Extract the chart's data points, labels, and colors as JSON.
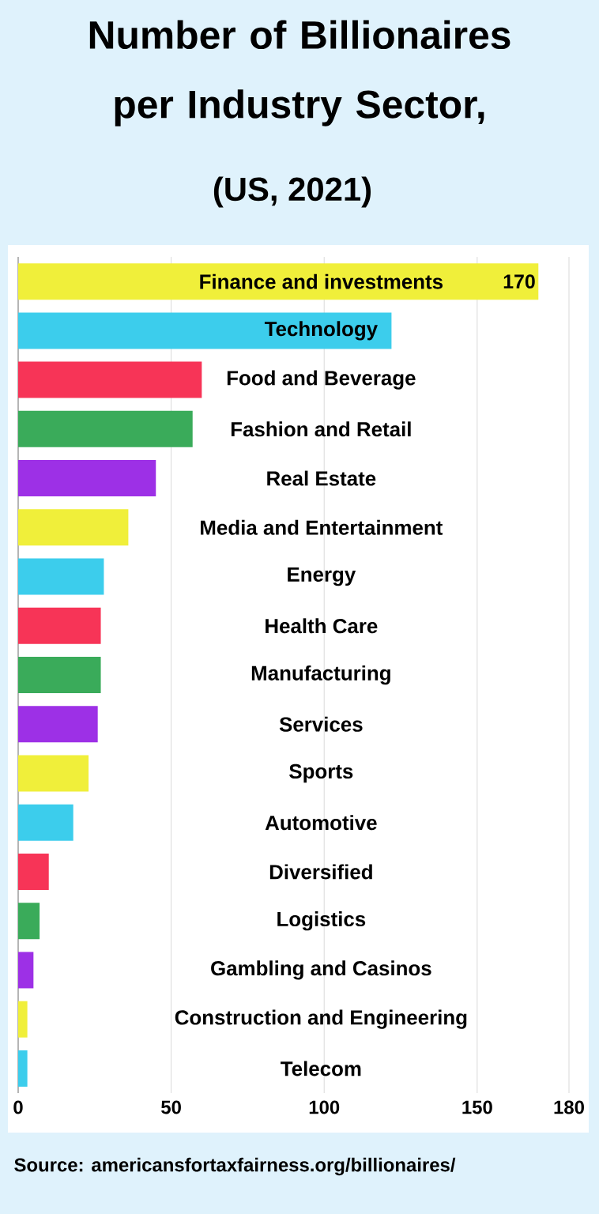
{
  "chart_data": {
    "type": "bar",
    "orientation": "horizontal",
    "title": "Number of Billionaires per Industry Sector,",
    "subtitle": "(US, 2021)",
    "categories": [
      "Finance and investments",
      "Technology",
      "Food and Beverage",
      "Fashion and Retail",
      "Real Estate",
      "Media and Entertainment",
      "Energy",
      "Health Care",
      "Manufacturing",
      "Services",
      "Sports",
      "Automotive",
      "Diversified",
      "Logistics",
      "Gambling and Casinos",
      "Construction and Engineering",
      "Telecom"
    ],
    "values": [
      170,
      122,
      60,
      57,
      45,
      36,
      28,
      27,
      27,
      26,
      23,
      18,
      10,
      7,
      5,
      3,
      3
    ],
    "value_labels": [
      "170",
      null,
      null,
      null,
      null,
      null,
      null,
      null,
      null,
      null,
      null,
      null,
      null,
      null,
      null,
      null,
      null
    ],
    "colors": [
      "#f0ef3a",
      "#3ccdec",
      "#f73457",
      "#3aab5a",
      "#9d30e6",
      "#f0ef3a",
      "#3ccdec",
      "#f73457",
      "#3aab5a",
      "#9d30e6",
      "#f0ef3a",
      "#3ccdec",
      "#f73457",
      "#3aab5a",
      "#9d30e6",
      "#f0ef3a",
      "#3ccdec"
    ],
    "xlim": [
      0,
      180
    ],
    "xticks": [
      0,
      50,
      100,
      150,
      180
    ],
    "grid": true,
    "annotations": [
      "Source: americansfortaxfairness.org/billionaires/"
    ]
  }
}
